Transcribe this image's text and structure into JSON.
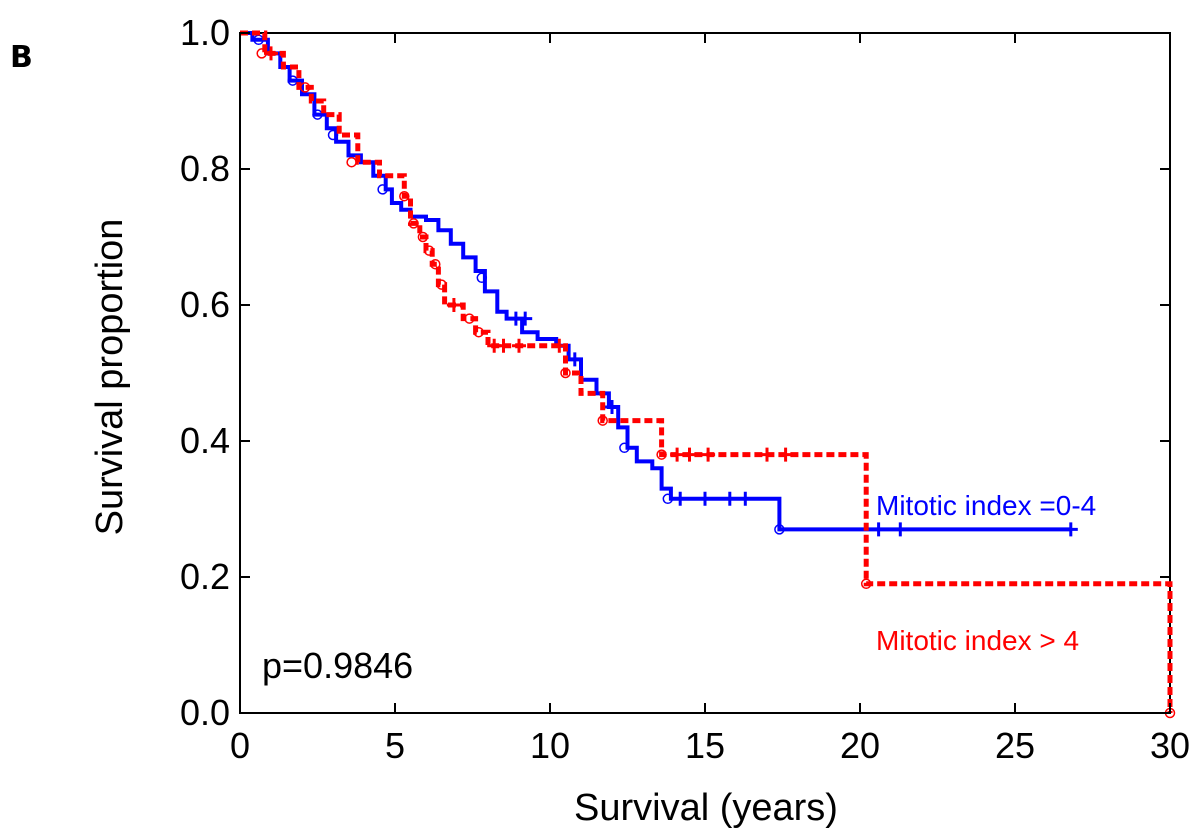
{
  "panel_label": "B",
  "chart_data": {
    "type": "line",
    "subtype": "kaplan-meier",
    "xlabel": "Survival (years)",
    "ylabel": "Survival proportion",
    "xlim": [
      0,
      30
    ],
    "ylim": [
      0,
      1
    ],
    "xticks": [
      0,
      5,
      10,
      15,
      20,
      25,
      30
    ],
    "yticks": [
      0.0,
      0.2,
      0.4,
      0.6,
      0.8,
      1.0
    ],
    "xtick_labels": [
      "0",
      "5",
      "10",
      "15",
      "20",
      "25",
      "30"
    ],
    "ytick_labels": [
      "0.0",
      "0.2",
      "0.4",
      "0.6",
      "0.8",
      "1.0"
    ],
    "grid": false,
    "annotation": "p=0.9846",
    "series": [
      {
        "name": "Mitotic index =0-4",
        "color": "#0000ff",
        "style": "solid",
        "steps": [
          [
            0,
            1.0
          ],
          [
            0.4,
            0.99
          ],
          [
            0.9,
            0.97
          ],
          [
            1.3,
            0.95
          ],
          [
            1.6,
            0.93
          ],
          [
            2.0,
            0.91
          ],
          [
            2.4,
            0.88
          ],
          [
            2.8,
            0.86
          ],
          [
            3.1,
            0.84
          ],
          [
            3.5,
            0.82
          ],
          [
            3.9,
            0.81
          ],
          [
            4.3,
            0.79
          ],
          [
            4.7,
            0.77
          ],
          [
            4.9,
            0.75
          ],
          [
            5.2,
            0.74
          ],
          [
            5.5,
            0.73
          ],
          [
            6.0,
            0.725
          ],
          [
            6.4,
            0.71
          ],
          [
            6.8,
            0.69
          ],
          [
            7.2,
            0.67
          ],
          [
            7.6,
            0.65
          ],
          [
            7.9,
            0.62
          ],
          [
            8.3,
            0.59
          ],
          [
            8.6,
            0.58
          ],
          [
            9.1,
            0.56
          ],
          [
            9.6,
            0.55
          ],
          [
            10.2,
            0.54
          ],
          [
            10.6,
            0.52
          ],
          [
            11.0,
            0.49
          ],
          [
            11.5,
            0.47
          ],
          [
            11.9,
            0.45
          ],
          [
            12.2,
            0.42
          ],
          [
            12.5,
            0.39
          ],
          [
            12.8,
            0.37
          ],
          [
            13.3,
            0.36
          ],
          [
            13.6,
            0.33
          ],
          [
            13.9,
            0.315
          ],
          [
            17.4,
            0.27
          ],
          [
            26.8,
            0.27
          ]
        ],
        "censored": [
          [
            8.9,
            0.58
          ],
          [
            9.2,
            0.58
          ],
          [
            10.8,
            0.52
          ],
          [
            12.0,
            0.45
          ],
          [
            14.2,
            0.315
          ],
          [
            15.0,
            0.315
          ],
          [
            15.8,
            0.315
          ],
          [
            16.3,
            0.315
          ],
          [
            20.6,
            0.27
          ],
          [
            21.3,
            0.27
          ],
          [
            26.8,
            0.27
          ]
        ],
        "events": [
          [
            0.6,
            0.99
          ],
          [
            1.7,
            0.93
          ],
          [
            2.5,
            0.88
          ],
          [
            3.0,
            0.85
          ],
          [
            4.6,
            0.77
          ],
          [
            7.8,
            0.64
          ],
          [
            12.4,
            0.39
          ],
          [
            13.8,
            0.315
          ],
          [
            17.4,
            0.27
          ]
        ]
      },
      {
        "name": "Mitotic index > 4",
        "color": "#ff0000",
        "style": "dashed",
        "steps": [
          [
            0,
            1.0
          ],
          [
            0.8,
            0.97
          ],
          [
            1.4,
            0.95
          ],
          [
            1.9,
            0.92
          ],
          [
            2.3,
            0.9
          ],
          [
            2.7,
            0.88
          ],
          [
            3.2,
            0.85
          ],
          [
            3.8,
            0.81
          ],
          [
            4.5,
            0.79
          ],
          [
            5.3,
            0.76
          ],
          [
            5.5,
            0.72
          ],
          [
            5.8,
            0.7
          ],
          [
            6.0,
            0.68
          ],
          [
            6.2,
            0.66
          ],
          [
            6.4,
            0.63
          ],
          [
            6.6,
            0.6
          ],
          [
            7.2,
            0.58
          ],
          [
            7.6,
            0.56
          ],
          [
            8.0,
            0.54
          ],
          [
            10.5,
            0.5
          ],
          [
            11.0,
            0.47
          ],
          [
            11.7,
            0.43
          ],
          [
            13.6,
            0.38
          ],
          [
            20.2,
            0.19
          ],
          [
            30.0,
            0.0
          ]
        ],
        "censored": [
          [
            1.0,
            0.97
          ],
          [
            6.9,
            0.6
          ],
          [
            8.2,
            0.54
          ],
          [
            8.5,
            0.54
          ],
          [
            9.0,
            0.54
          ],
          [
            10.3,
            0.54
          ],
          [
            14.1,
            0.38
          ],
          [
            14.5,
            0.38
          ],
          [
            15.1,
            0.38
          ],
          [
            17.0,
            0.38
          ],
          [
            17.6,
            0.38
          ]
        ],
        "events": [
          [
            0.7,
            0.97
          ],
          [
            2.1,
            0.92
          ],
          [
            3.6,
            0.81
          ],
          [
            5.3,
            0.76
          ],
          [
            5.6,
            0.72
          ],
          [
            5.9,
            0.7
          ],
          [
            6.1,
            0.68
          ],
          [
            6.3,
            0.66
          ],
          [
            6.5,
            0.63
          ],
          [
            7.4,
            0.58
          ],
          [
            7.7,
            0.56
          ],
          [
            10.5,
            0.5
          ],
          [
            11.7,
            0.43
          ],
          [
            13.6,
            0.38
          ],
          [
            20.2,
            0.19
          ],
          [
            30.0,
            0.0
          ]
        ]
      }
    ]
  }
}
